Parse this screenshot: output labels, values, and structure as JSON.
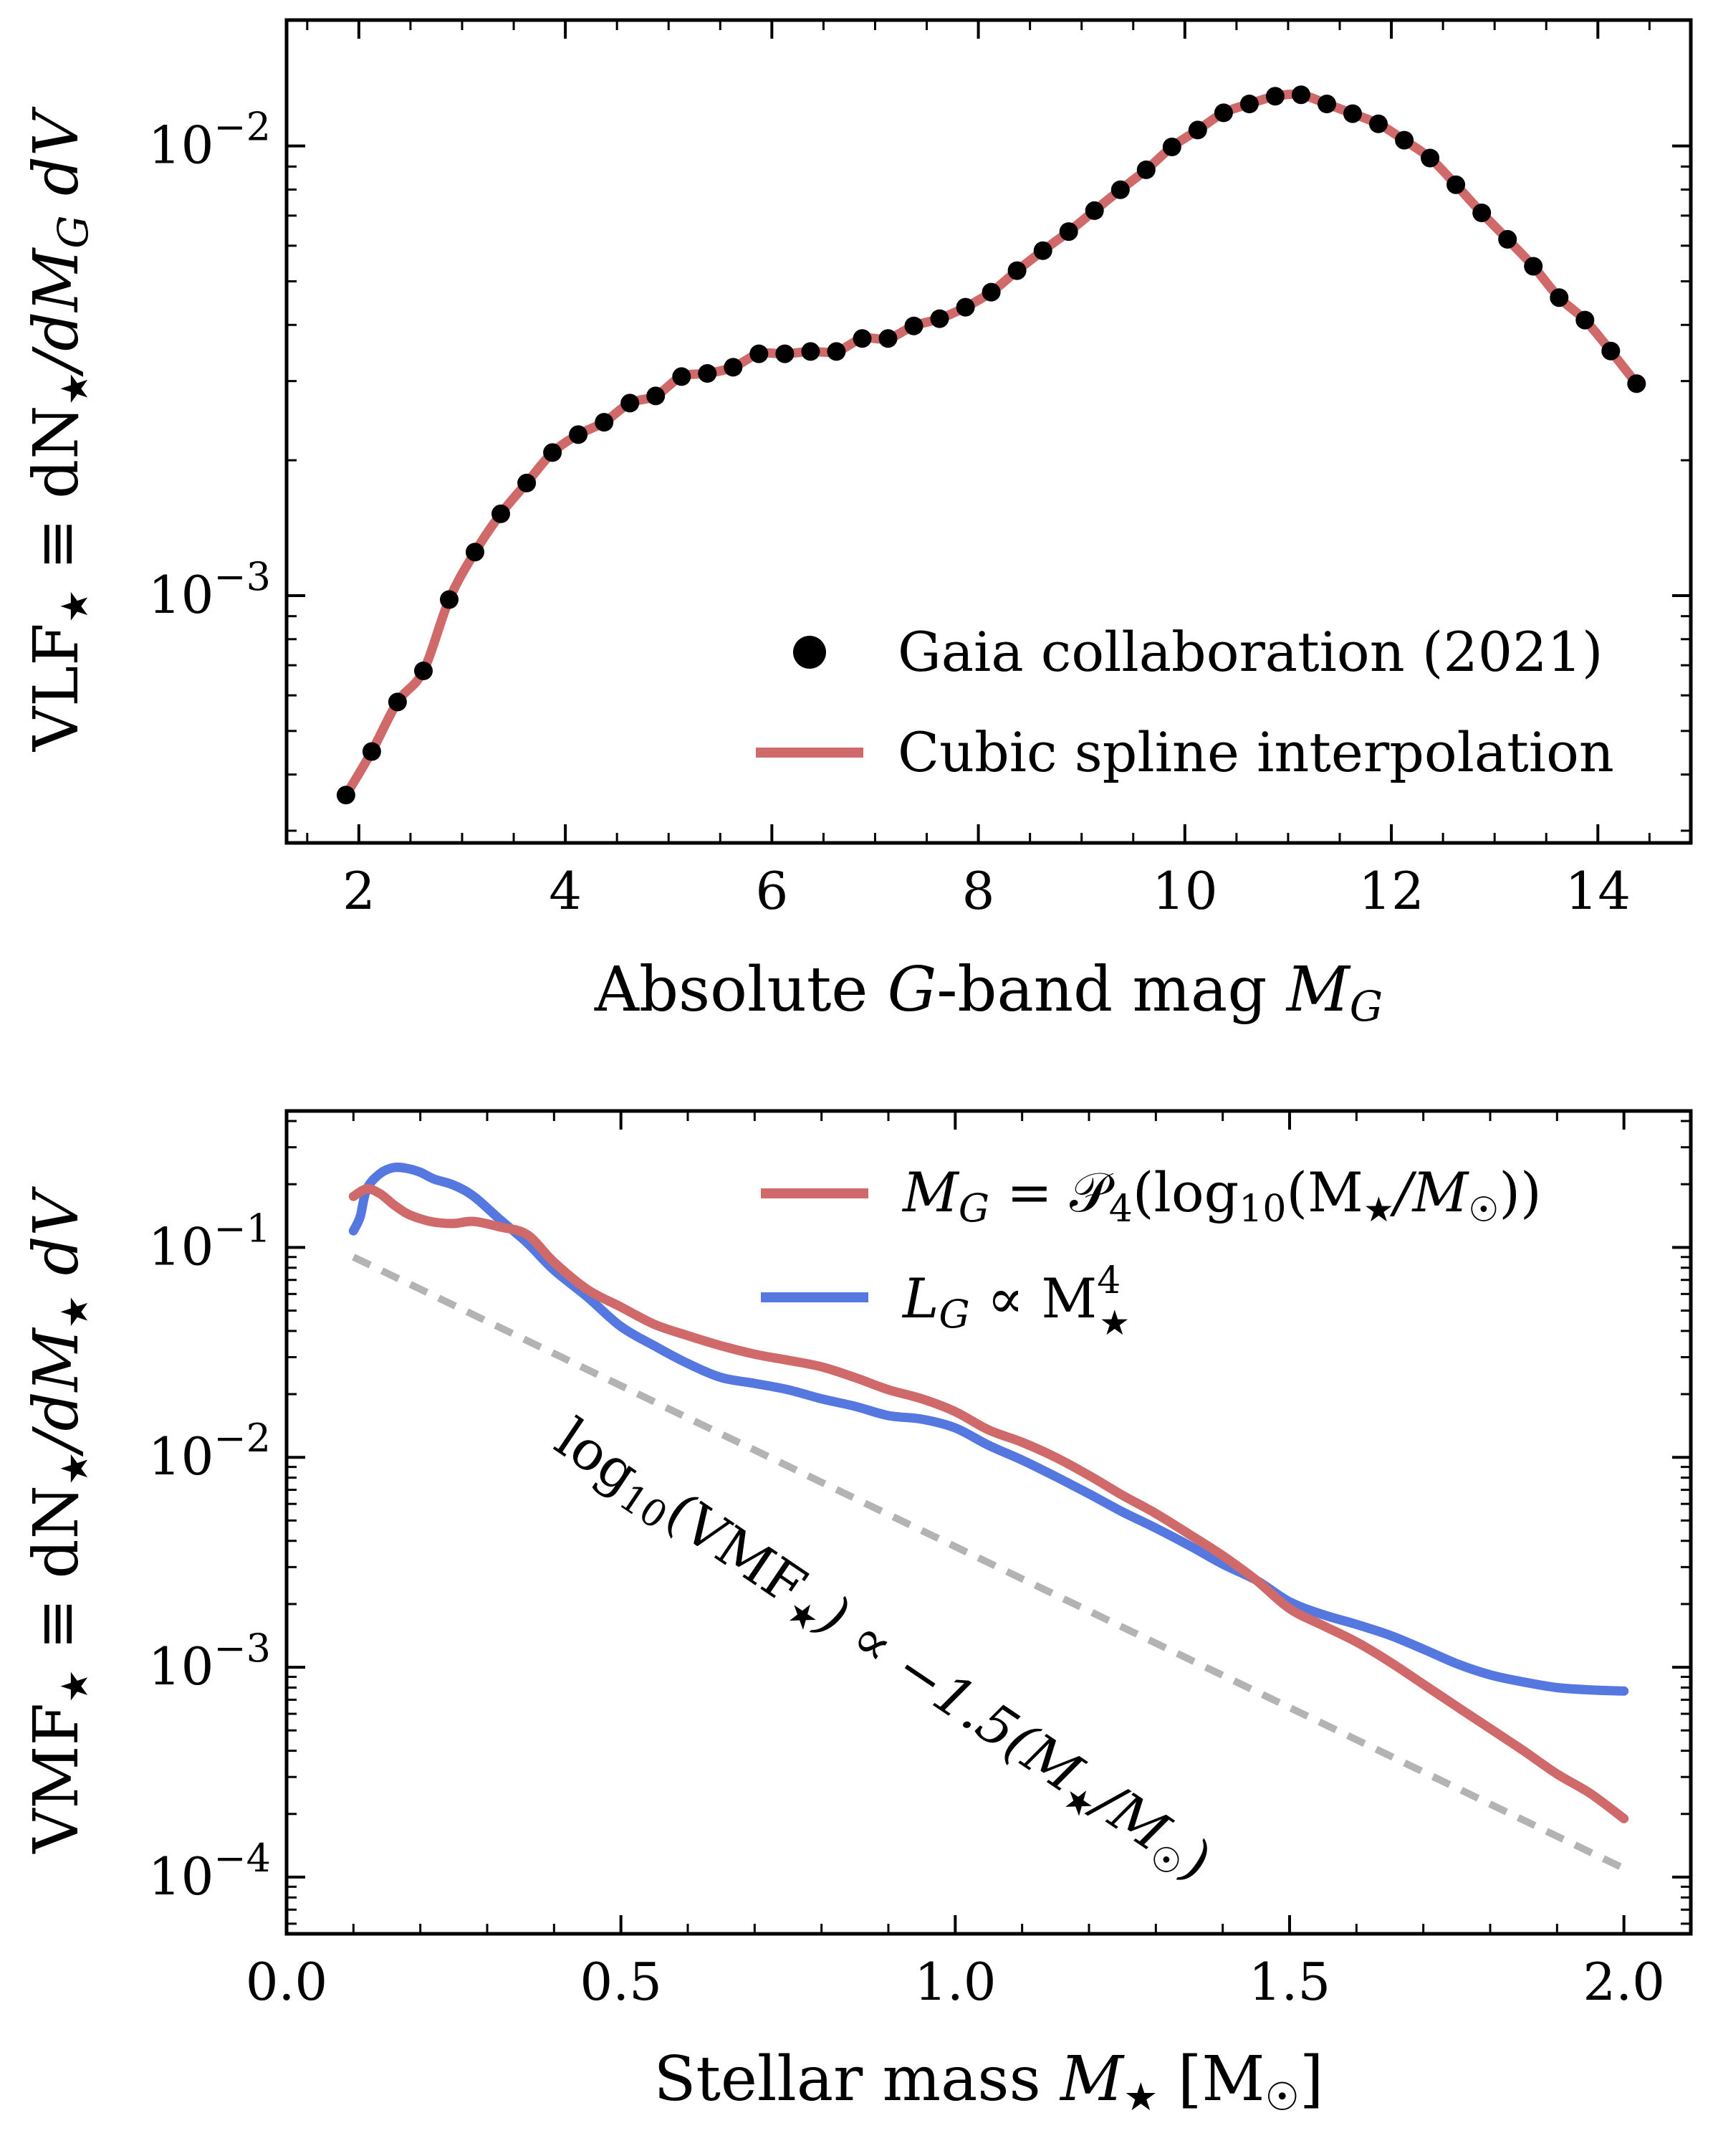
{
  "colors": {
    "spline": "#d06a6a",
    "poly": "#d06a6a",
    "power": "#5577e0",
    "dots": "#000000",
    "guide": "#b3b3b3"
  },
  "chart_data": [
    {
      "type": "scatter",
      "title": "",
      "xlabel": "Absolute G-band mag M_G",
      "ylabel": "VLF★ ≡ dN★/dM_G dV",
      "xlim": [
        1.3,
        14.9
      ],
      "ylim_log10": [
        -3.55,
        -1.72
      ],
      "yscale": "log",
      "xticks": [
        2,
        4,
        6,
        8,
        10,
        12,
        14
      ],
      "yticks": [
        {
          "exp": -2,
          "value": 0.01
        },
        {
          "exp": -3,
          "value": 0.001
        }
      ],
      "legend_location": "lower-right",
      "series": [
        {
          "name": "Gaia collaboration (2021)",
          "kind": "points",
          "x": [
            1.875,
            2.125,
            2.375,
            2.625,
            2.875,
            3.125,
            3.375,
            3.625,
            3.875,
            4.125,
            4.375,
            4.625,
            4.875,
            5.125,
            5.375,
            5.625,
            5.875,
            6.125,
            6.375,
            6.625,
            6.875,
            7.125,
            7.375,
            7.625,
            7.875,
            8.125,
            8.375,
            8.625,
            8.875,
            9.125,
            9.375,
            9.625,
            9.875,
            10.125,
            10.375,
            10.625,
            10.875,
            11.125,
            11.375,
            11.625,
            11.875,
            12.125,
            12.375,
            12.625,
            12.875,
            13.125,
            13.375,
            13.625,
            13.875,
            14.125,
            14.375
          ],
          "y": [
            0.00036,
            0.00045,
            0.00058,
            0.00068,
            0.00098,
            0.00125,
            0.00152,
            0.00178,
            0.00208,
            0.00228,
            0.00243,
            0.00268,
            0.00278,
            0.00307,
            0.00312,
            0.00322,
            0.00345,
            0.00345,
            0.00349,
            0.00349,
            0.00373,
            0.00373,
            0.00398,
            0.00413,
            0.00438,
            0.00473,
            0.00528,
            0.00585,
            0.00645,
            0.00718,
            0.00799,
            0.00885,
            0.00995,
            0.01085,
            0.01185,
            0.0124,
            0.0129,
            0.013,
            0.0124,
            0.0118,
            0.0112,
            0.0103,
            0.0094,
            0.0082,
            0.0071,
            0.0062,
            0.0054,
            0.0046,
            0.0041,
            0.0035,
            0.00296
          ]
        },
        {
          "name": "Cubic spline interpolation",
          "kind": "line",
          "source": "spline through the Gaia points"
        }
      ]
    },
    {
      "type": "line",
      "title": "",
      "xlabel": "Stellar mass M★ [M☉]",
      "ylabel": "VMF★ ≡ dN★/dM★ dV",
      "xlim": [
        0.0,
        2.1
      ],
      "ylim_log10": [
        -4.27,
        -0.35
      ],
      "yscale": "log",
      "xticks": [
        0.0,
        0.5,
        1.0,
        1.5,
        2.0
      ],
      "yticks": [
        {
          "exp": -1,
          "value": 0.1
        },
        {
          "exp": -2,
          "value": 0.01
        },
        {
          "exp": -3,
          "value": 0.001
        },
        {
          "exp": -4,
          "value": 0.0001
        }
      ],
      "legend_location": "top-right",
      "series": [
        {
          "name": "M_G = P4(log10(M★/M☉))",
          "x": [
            0.1,
            0.12,
            0.14,
            0.16,
            0.18,
            0.2,
            0.22,
            0.25,
            0.28,
            0.32,
            0.36,
            0.4,
            0.45,
            0.5,
            0.55,
            0.6,
            0.65,
            0.7,
            0.75,
            0.8,
            0.85,
            0.9,
            0.95,
            1.0,
            1.05,
            1.1,
            1.15,
            1.2,
            1.25,
            1.3,
            1.35,
            1.4,
            1.45,
            1.5,
            1.55,
            1.6,
            1.65,
            1.7,
            1.75,
            1.8,
            1.85,
            1.9,
            1.95,
            2.0
          ],
          "y": [
            0.175,
            0.19,
            0.18,
            0.16,
            0.145,
            0.137,
            0.132,
            0.13,
            0.133,
            0.125,
            0.115,
            0.085,
            0.063,
            0.052,
            0.043,
            0.038,
            0.034,
            0.031,
            0.029,
            0.027,
            0.024,
            0.021,
            0.019,
            0.0165,
            0.0135,
            0.0118,
            0.01,
            0.0082,
            0.0066,
            0.0054,
            0.0043,
            0.0034,
            0.0026,
            0.0019,
            0.00158,
            0.00132,
            0.00106,
            0.00083,
            0.00065,
            0.00051,
            0.0004,
            0.00031,
            0.00025,
            0.00019
          ]
        },
        {
          "name": "L_G ∝ M★^4",
          "x": [
            0.1,
            0.11,
            0.12,
            0.14,
            0.16,
            0.18,
            0.2,
            0.22,
            0.25,
            0.28,
            0.32,
            0.36,
            0.4,
            0.45,
            0.5,
            0.55,
            0.6,
            0.65,
            0.7,
            0.75,
            0.8,
            0.85,
            0.9,
            0.95,
            1.0,
            1.05,
            1.1,
            1.15,
            1.2,
            1.25,
            1.3,
            1.35,
            1.4,
            1.45,
            1.5,
            1.55,
            1.6,
            1.65,
            1.7,
            1.75,
            1.8,
            1.85,
            1.9,
            1.95,
            2.0
          ],
          "y": [
            0.12,
            0.14,
            0.19,
            0.225,
            0.24,
            0.238,
            0.228,
            0.212,
            0.198,
            0.175,
            0.135,
            0.105,
            0.078,
            0.058,
            0.042,
            0.034,
            0.028,
            0.024,
            0.0225,
            0.021,
            0.019,
            0.0175,
            0.0158,
            0.0152,
            0.0138,
            0.0114,
            0.0097,
            0.0081,
            0.0067,
            0.0055,
            0.0046,
            0.0038,
            0.0031,
            0.0026,
            0.00205,
            0.00178,
            0.0016,
            0.00142,
            0.00122,
            0.00104,
            0.00092,
            0.00085,
            0.0008,
            0.00078,
            0.00077
          ]
        },
        {
          "name": "log10(VMF★) ∝ −1.5(M★/M☉)",
          "kind": "dashed-guide",
          "x": [
            0.1,
            2.0
          ],
          "y": [
            0.09,
            0.00011
          ]
        }
      ],
      "annotation": "log10(VMF★) ∝ −1.5(M★/M☉)"
    }
  ],
  "legend_top": {
    "dots_label": "Gaia collaboration (2021)",
    "spline_label": "Cubic spline interpolation"
  },
  "legend_bottom": {
    "poly_label_a": "M",
    "poly_label_b": "G",
    "poly_label_c": " = 𝒫",
    "poly_label_d": "4",
    "poly_label_e": "(log",
    "poly_label_f": "10",
    "poly_label_g": "(M",
    "poly_label_h": "★",
    "poly_label_i": "/M",
    "poly_label_j": "☉",
    "poly_label_k": "))",
    "power_label_a": "L",
    "power_label_b": "G",
    "power_label_c": " ∝ M",
    "power_label_d": "4",
    "power_label_e": "★"
  },
  "axes_text": {
    "top_xlabel_a": "Absolute ",
    "top_xlabel_b": "G",
    "top_xlabel_c": "-band mag ",
    "top_xlabel_d": "M",
    "top_xlabel_e": "G",
    "top_ylabel_a": "VLF",
    "top_ylabel_b": "★",
    "top_ylabel_c": " ≡ dN",
    "top_ylabel_d": "★",
    "top_ylabel_e": "/dM",
    "top_ylabel_f": "G",
    "top_ylabel_g": " dV",
    "bot_xlabel_a": "Stellar mass ",
    "bot_xlabel_b": "M",
    "bot_xlabel_c": "★",
    "bot_xlabel_d": " [M",
    "bot_xlabel_e": "☉",
    "bot_xlabel_f": "]",
    "bot_ylabel_a": "VMF",
    "bot_ylabel_b": "★",
    "bot_ylabel_c": " ≡ dN",
    "bot_ylabel_d": "★",
    "bot_ylabel_e": "/dM",
    "bot_ylabel_f": "★",
    "bot_ylabel_g": " dV",
    "annot_a": "log",
    "annot_b": "10",
    "annot_c": "(VMF",
    "annot_d": "★",
    "annot_e": ") ∝ −1.5(M",
    "annot_f": "★",
    "annot_g": "/M",
    "annot_h": "☉",
    "annot_i": ")",
    "ytick_base": "10"
  }
}
